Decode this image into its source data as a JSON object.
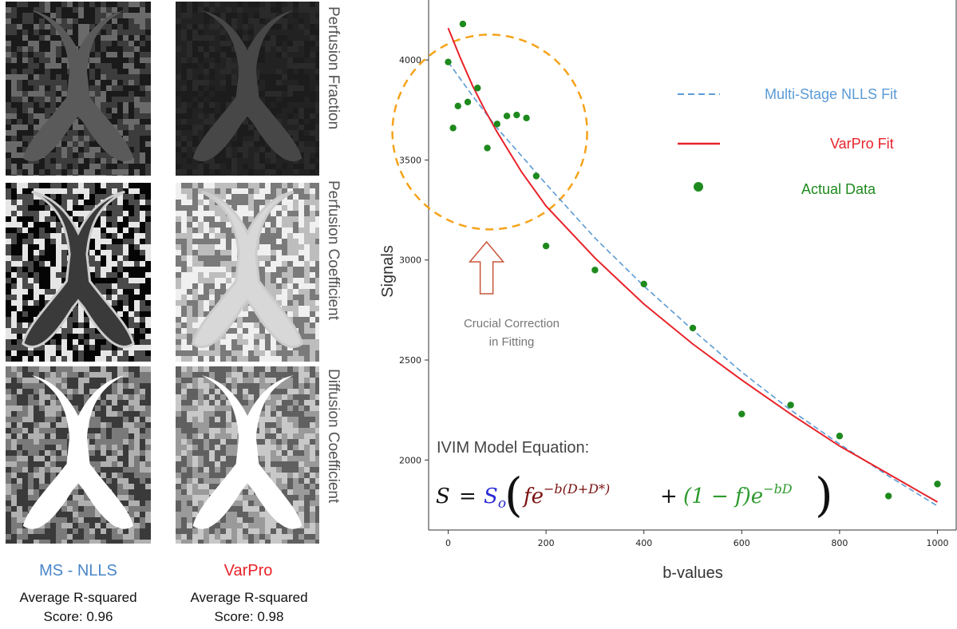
{
  "panels": {
    "row_labels": [
      "Perfusion Fraction",
      "Perfusion Coefficient",
      "Diffusion Coefficient"
    ],
    "columns": [
      {
        "title": "MS - NLLS",
        "title_color": "#4a86c8",
        "score_line1": "Average R-squared",
        "score_line2": "Score: 0.96"
      },
      {
        "title": "VarPro",
        "title_color": "#e8232a",
        "score_line1": "Average R-squared",
        "score_line2": "Score: 0.98"
      }
    ]
  },
  "chart_data": {
    "type": "scatter",
    "xlabel": "b-values",
    "ylabel": "Signals",
    "xlim": [
      -40,
      1040
    ],
    "ylim": [
      1650,
      4300
    ],
    "xticks": [
      0,
      200,
      400,
      600,
      800,
      1000
    ],
    "yticks": [
      2000,
      2500,
      3000,
      3500,
      4000
    ],
    "colors": {
      "ms_nlls": "#5b9bd5",
      "varpro": "#e8232a",
      "data": "#1e8a1e",
      "circle": "#f5a31a",
      "arrow": "#c8553a"
    },
    "series": [
      {
        "name": "Multi-Stage NLLS Fit",
        "style": "dashed",
        "x": [
          0,
          50,
          100,
          150,
          200,
          300,
          400,
          500,
          600,
          700,
          800,
          900,
          1000
        ],
        "y": [
          3990,
          3820,
          3660,
          3520,
          3380,
          3110,
          2870,
          2650,
          2440,
          2250,
          2080,
          1920,
          1770
        ]
      },
      {
        "name": "VarPro Fit",
        "style": "solid",
        "x": [
          0,
          25,
          50,
          75,
          100,
          150,
          200,
          300,
          400,
          500,
          600,
          700,
          800,
          900,
          1000
        ],
        "y": [
          4160,
          4010,
          3870,
          3750,
          3640,
          3440,
          3270,
          3010,
          2780,
          2580,
          2400,
          2230,
          2070,
          1930,
          1790
        ]
      },
      {
        "name": "Actual Data",
        "style": "points",
        "x": [
          0,
          10,
          20,
          30,
          40,
          60,
          80,
          100,
          120,
          140,
          160,
          180,
          200,
          300,
          400,
          500,
          600,
          700,
          800,
          900,
          1000
        ],
        "y": [
          3990,
          3660,
          3770,
          4180,
          3790,
          3860,
          3560,
          3680,
          3720,
          3725,
          3710,
          3420,
          3070,
          2950,
          2880,
          2660,
          2230,
          2275,
          2120,
          1820,
          1880
        ]
      }
    ],
    "annotation": {
      "line1": "Crucial Correction",
      "line2": "in Fitting"
    },
    "equation": {
      "title": "IVIM Model Equation:"
    }
  }
}
